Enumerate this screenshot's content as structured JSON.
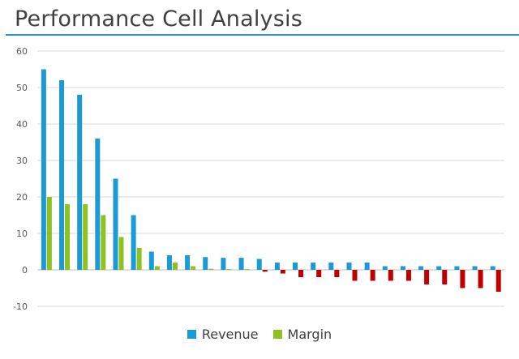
{
  "chart_data": {
    "type": "bar",
    "title": "Performance Cell Analysis",
    "xlabel": "",
    "ylabel": "",
    "ylim": [
      -10,
      60
    ],
    "yticks": [
      -10,
      0,
      10,
      20,
      30,
      40,
      50,
      60
    ],
    "grid": true,
    "legend_position": "bottom",
    "categories": [
      "",
      "",
      "",
      "",
      "",
      "",
      "",
      "",
      "",
      "",
      "",
      "",
      "",
      "",
      "",
      "",
      "",
      "",
      "",
      "",
      "",
      "",
      "",
      "",
      "",
      ""
    ],
    "series": [
      {
        "name": "Revenue",
        "color": "#1a9ad7",
        "values": [
          55,
          52,
          48,
          36,
          25,
          15,
          5,
          4,
          4,
          3.5,
          3.3,
          3.3,
          3,
          2,
          2,
          2,
          2,
          2,
          2,
          1,
          1,
          1,
          1,
          1,
          1,
          1
        ]
      },
      {
        "name": "Margin",
        "color": "#8dc21f",
        "negative_color": "#c00000",
        "values": [
          20,
          18,
          18,
          15,
          9,
          6,
          1,
          2,
          1,
          0.3,
          0.2,
          0.2,
          -0.5,
          -1,
          -2,
          -2,
          -2,
          -3,
          -3,
          -3,
          -3,
          -4,
          -4,
          -5,
          -5,
          -6
        ]
      }
    ]
  }
}
